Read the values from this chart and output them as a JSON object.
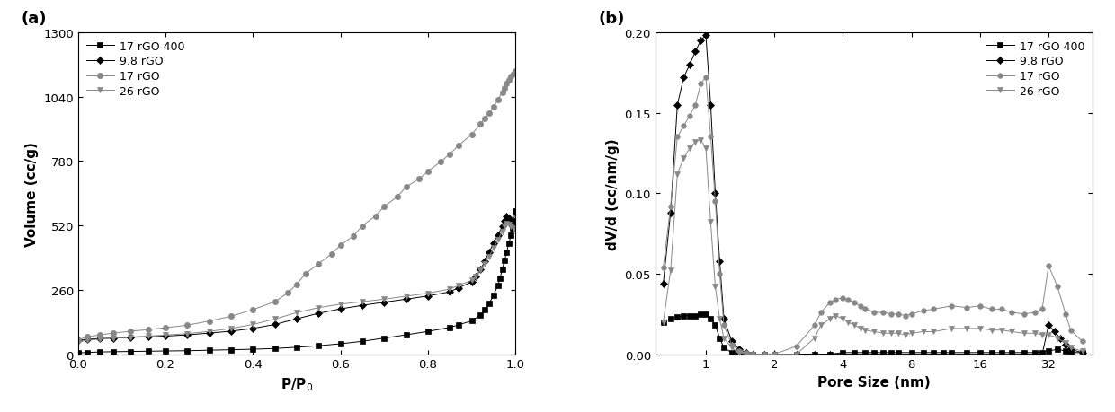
{
  "panel_a": {
    "ylabel": "Volume (cc/g)",
    "ylim": [
      0,
      1300
    ],
    "yticks": [
      0,
      260,
      520,
      780,
      1040,
      1300
    ],
    "xlim": [
      0.0,
      1.0
    ],
    "xticks": [
      0.0,
      0.2,
      0.4,
      0.6,
      0.8,
      1.0
    ],
    "series": {
      "17rGO400": {
        "label": "17 rGO 400",
        "marker": "s",
        "color": "#000000",
        "x": [
          0.0,
          0.02,
          0.05,
          0.08,
          0.12,
          0.16,
          0.2,
          0.25,
          0.3,
          0.35,
          0.4,
          0.45,
          0.5,
          0.55,
          0.6,
          0.65,
          0.7,
          0.75,
          0.8,
          0.85,
          0.87,
          0.9,
          0.92,
          0.93,
          0.94,
          0.95,
          0.96,
          0.965,
          0.97,
          0.975,
          0.98,
          0.985,
          0.99,
          0.993,
          0.996,
          1.0
        ],
        "y": [
          5,
          7,
          9,
          10,
          11,
          12,
          13,
          14,
          16,
          18,
          20,
          23,
          28,
          34,
          42,
          52,
          65,
          78,
          92,
          108,
          118,
          135,
          158,
          178,
          205,
          238,
          278,
          308,
          342,
          378,
          412,
          448,
          480,
          510,
          540,
          580
        ]
      },
      "9.8rGO": {
        "label": "9.8 rGO",
        "marker": "D",
        "color": "#000000",
        "x": [
          0.0,
          0.02,
          0.05,
          0.08,
          0.12,
          0.16,
          0.2,
          0.25,
          0.3,
          0.35,
          0.4,
          0.45,
          0.5,
          0.55,
          0.6,
          0.65,
          0.7,
          0.75,
          0.8,
          0.85,
          0.87,
          0.9,
          0.91,
          0.92,
          0.93,
          0.94,
          0.95,
          0.96,
          0.97,
          0.975,
          0.98,
          0.985,
          0.99,
          0.995,
          1.0
        ],
        "y": [
          55,
          60,
          63,
          65,
          68,
          70,
          73,
          78,
          85,
          93,
          104,
          120,
          143,
          165,
          183,
          197,
          210,
          222,
          235,
          252,
          268,
          292,
          312,
          342,
          375,
          412,
          448,
          482,
          515,
          540,
          556,
          548,
          535,
          522,
          512
        ]
      },
      "17rGO": {
        "label": "17 rGO",
        "marker": "o",
        "color": "#888888",
        "x": [
          0.0,
          0.02,
          0.05,
          0.08,
          0.12,
          0.16,
          0.2,
          0.25,
          0.3,
          0.35,
          0.4,
          0.45,
          0.48,
          0.5,
          0.52,
          0.55,
          0.58,
          0.6,
          0.63,
          0.65,
          0.68,
          0.7,
          0.73,
          0.75,
          0.78,
          0.8,
          0.83,
          0.85,
          0.87,
          0.9,
          0.92,
          0.93,
          0.94,
          0.95,
          0.96,
          0.97,
          0.975,
          0.98,
          0.985,
          0.99,
          0.995,
          1.0
        ],
        "y": [
          58,
          70,
          78,
          85,
          93,
          99,
          107,
          117,
          134,
          153,
          180,
          212,
          248,
          282,
          325,
          365,
          405,
          440,
          478,
          518,
          558,
          596,
          636,
          675,
          708,
          738,
          778,
          808,
          842,
          888,
          928,
          952,
          972,
          998,
          1028,
          1058,
          1075,
          1092,
          1108,
          1120,
          1132,
          1142
        ]
      },
      "26rGO": {
        "label": "26 rGO",
        "marker": "v",
        "color": "#888888",
        "x": [
          0.0,
          0.02,
          0.05,
          0.08,
          0.12,
          0.16,
          0.2,
          0.25,
          0.3,
          0.35,
          0.4,
          0.45,
          0.5,
          0.55,
          0.6,
          0.65,
          0.7,
          0.75,
          0.8,
          0.85,
          0.87,
          0.9,
          0.91,
          0.92,
          0.93,
          0.94,
          0.95,
          0.96,
          0.97,
          0.975,
          0.98,
          0.985,
          0.99,
          0.995,
          1.0
        ],
        "y": [
          48,
          56,
          61,
          65,
          69,
          73,
          77,
          83,
          92,
          104,
          120,
          142,
          168,
          188,
          202,
          212,
          222,
          234,
          246,
          263,
          278,
          298,
          315,
          340,
          365,
          395,
          428,
          462,
          495,
          515,
          528,
          524,
          515,
          508,
          500
        ]
      }
    }
  },
  "panel_b": {
    "xlabel": "Pore Size (nm)",
    "ylabel": "dV/d (cc/nm/g)",
    "ylim": [
      0.0,
      0.2
    ],
    "yticks": [
      0.0,
      0.05,
      0.1,
      0.15,
      0.2
    ],
    "log_xticks": [
      1,
      2,
      4,
      8,
      16,
      32
    ],
    "log_xticklabels": [
      "1",
      "2",
      "4",
      "8",
      "16",
      "32"
    ],
    "xlim_log": [
      0.6,
      50
    ],
    "series": {
      "17rGO400": {
        "label": "17 rGO 400",
        "marker": "s",
        "color": "#000000",
        "x": [
          0.65,
          0.7,
          0.75,
          0.8,
          0.85,
          0.9,
          0.95,
          1.0,
          1.05,
          1.1,
          1.15,
          1.2,
          1.3,
          1.4,
          1.5,
          1.6,
          1.8,
          2.0,
          2.5,
          3.0,
          3.5,
          4.0,
          4.5,
          5.0,
          5.5,
          6.0,
          6.5,
          7.0,
          8.0,
          9.0,
          10.0,
          11.0,
          12.0,
          14.0,
          16.0,
          18.0,
          20.0,
          22.0,
          25.0,
          28.0,
          30.0,
          32.0,
          35.0,
          38.0,
          40.0,
          45.0
        ],
        "y": [
          0.02,
          0.022,
          0.023,
          0.024,
          0.024,
          0.024,
          0.025,
          0.025,
          0.022,
          0.018,
          0.01,
          0.004,
          0.001,
          0.0,
          0.0,
          0.0,
          0.0,
          0.0,
          0.0,
          0.0,
          0.0,
          0.001,
          0.001,
          0.001,
          0.001,
          0.001,
          0.001,
          0.001,
          0.001,
          0.001,
          0.001,
          0.001,
          0.001,
          0.001,
          0.001,
          0.001,
          0.001,
          0.001,
          0.001,
          0.001,
          0.001,
          0.002,
          0.003,
          0.002,
          0.001,
          0.001
        ]
      },
      "9.8rGO": {
        "label": "9.8 rGO",
        "marker": "D",
        "color": "#000000",
        "x": [
          0.65,
          0.7,
          0.75,
          0.8,
          0.85,
          0.9,
          0.95,
          1.0,
          1.05,
          1.1,
          1.15,
          1.2,
          1.3,
          1.4,
          1.5,
          1.6,
          1.8,
          2.0,
          2.5,
          3.0,
          3.5,
          4.0,
          4.5,
          5.0,
          5.5,
          6.0,
          7.0,
          8.0,
          9.0,
          10.0,
          12.0,
          14.0,
          16.0,
          18.0,
          20.0,
          22.0,
          25.0,
          28.0,
          30.0,
          32.0,
          34.0,
          36.0,
          38.0,
          40.0,
          45.0
        ],
        "y": [
          0.044,
          0.088,
          0.155,
          0.172,
          0.18,
          0.188,
          0.195,
          0.198,
          0.155,
          0.1,
          0.058,
          0.022,
          0.008,
          0.003,
          0.001,
          0.0,
          0.0,
          0.0,
          0.0,
          0.0,
          0.0,
          0.0,
          0.0,
          0.0,
          0.0,
          0.0,
          0.0,
          0.0,
          0.0,
          0.0,
          0.0,
          0.0,
          0.0,
          0.0,
          0.0,
          0.0,
          0.0,
          0.0,
          0.0,
          0.018,
          0.014,
          0.01,
          0.006,
          0.003,
          0.001
        ]
      },
      "17rGO": {
        "label": "17 rGO",
        "marker": "o",
        "color": "#888888",
        "x": [
          0.65,
          0.7,
          0.75,
          0.8,
          0.85,
          0.9,
          0.95,
          1.0,
          1.05,
          1.1,
          1.15,
          1.2,
          1.3,
          1.4,
          1.5,
          1.6,
          1.8,
          2.0,
          2.5,
          3.0,
          3.2,
          3.5,
          3.7,
          4.0,
          4.2,
          4.5,
          4.8,
          5.0,
          5.5,
          6.0,
          6.5,
          7.0,
          7.5,
          8.0,
          9.0,
          10.0,
          12.0,
          14.0,
          16.0,
          18.0,
          20.0,
          22.0,
          25.0,
          28.0,
          30.0,
          32.0,
          35.0,
          38.0,
          40.0,
          45.0
        ],
        "y": [
          0.054,
          0.092,
          0.135,
          0.142,
          0.148,
          0.155,
          0.168,
          0.172,
          0.135,
          0.095,
          0.05,
          0.018,
          0.006,
          0.002,
          0.001,
          0.0,
          0.0,
          0.0,
          0.005,
          0.018,
          0.026,
          0.032,
          0.034,
          0.035,
          0.034,
          0.032,
          0.03,
          0.028,
          0.026,
          0.026,
          0.025,
          0.025,
          0.024,
          0.025,
          0.027,
          0.028,
          0.03,
          0.029,
          0.03,
          0.028,
          0.028,
          0.026,
          0.025,
          0.026,
          0.028,
          0.055,
          0.042,
          0.025,
          0.015,
          0.008
        ]
      },
      "26rGO": {
        "label": "26 rGO",
        "marker": "v",
        "color": "#888888",
        "x": [
          0.65,
          0.7,
          0.75,
          0.8,
          0.85,
          0.9,
          0.95,
          1.0,
          1.05,
          1.1,
          1.15,
          1.2,
          1.3,
          1.4,
          1.5,
          1.6,
          1.8,
          2.0,
          2.5,
          3.0,
          3.2,
          3.5,
          3.7,
          4.0,
          4.2,
          4.5,
          4.8,
          5.0,
          5.5,
          6.0,
          6.5,
          7.0,
          7.5,
          8.0,
          9.0,
          10.0,
          12.0,
          14.0,
          16.0,
          18.0,
          20.0,
          22.0,
          25.0,
          28.0,
          30.0,
          32.0,
          35.0,
          38.0,
          40.0,
          45.0
        ],
        "y": [
          0.02,
          0.052,
          0.112,
          0.122,
          0.128,
          0.132,
          0.133,
          0.128,
          0.082,
          0.042,
          0.022,
          0.01,
          0.004,
          0.001,
          0.0,
          0.0,
          0.0,
          0.0,
          0.0,
          0.01,
          0.018,
          0.022,
          0.024,
          0.022,
          0.02,
          0.018,
          0.016,
          0.015,
          0.014,
          0.013,
          0.013,
          0.013,
          0.012,
          0.013,
          0.014,
          0.014,
          0.016,
          0.016,
          0.016,
          0.015,
          0.015,
          0.014,
          0.013,
          0.013,
          0.012,
          0.012,
          0.01,
          0.007,
          0.004,
          0.002
        ]
      }
    }
  }
}
